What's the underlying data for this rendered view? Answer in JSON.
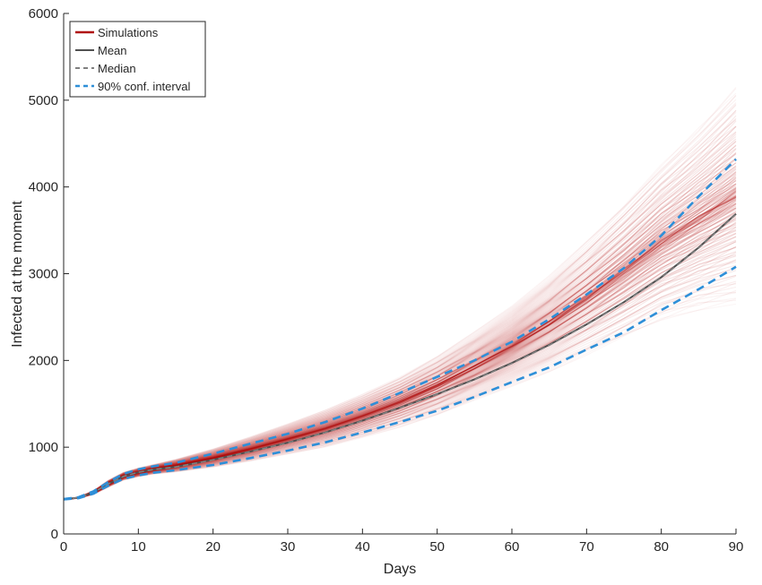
{
  "chart_data": {
    "type": "line",
    "title": "",
    "xlabel": "Days",
    "ylabel": "Infected at the moment",
    "xlim": [
      0,
      90
    ],
    "ylim": [
      0,
      6000
    ],
    "xticks": [
      0,
      10,
      20,
      30,
      40,
      50,
      60,
      70,
      80,
      90
    ],
    "yticks": [
      0,
      1000,
      2000,
      3000,
      4000,
      5000,
      6000
    ],
    "grid": false,
    "legend_position": "top-left",
    "x": [
      0,
      2,
      4,
      6,
      8,
      10,
      12,
      15,
      20,
      25,
      30,
      35,
      40,
      45,
      50,
      55,
      60,
      65,
      70,
      75,
      80,
      85,
      90
    ],
    "simulation_range": {
      "lower": [
        395,
        410,
        455,
        540,
        620,
        660,
        690,
        715,
        770,
        840,
        920,
        1000,
        1110,
        1230,
        1370,
        1530,
        1700,
        1870,
        2060,
        2260,
        2460,
        2580,
        2650
      ],
      "upper": [
        400,
        425,
        500,
        620,
        710,
        760,
        800,
        860,
        980,
        1120,
        1270,
        1430,
        1610,
        1810,
        2050,
        2330,
        2640,
        2980,
        3370,
        3800,
        4260,
        4680,
        5150
      ]
    },
    "series": [
      {
        "name": "Simulations",
        "color": "#b01010",
        "style": "solid",
        "density_band": true
      },
      {
        "name": "Mean",
        "color": "#505050",
        "style": "solid",
        "values": [
          400,
          418,
          478,
          578,
          663,
          710,
          742,
          773,
          855,
          950,
          1052,
          1170,
          1306,
          1455,
          1612,
          1782,
          1970,
          2180,
          2415,
          2673,
          2960,
          3300,
          3690
        ]
      },
      {
        "name": "Median",
        "color": "#808080",
        "style": "dashed",
        "values": [
          400,
          418,
          478,
          578,
          663,
          710,
          742,
          772,
          853,
          948,
          1050,
          1168,
          1303,
          1452,
          1608,
          1778,
          1965,
          2175,
          2410,
          2668,
          2955,
          3295,
          3685
        ]
      },
      {
        "name": "90% conf. interval",
        "color": "#2e8fd8",
        "style": "dashed",
        "band": {
          "lower": [
            398,
            412,
            465,
            557,
            635,
            675,
            705,
            735,
            795,
            875,
            960,
            1055,
            1170,
            1290,
            1420,
            1580,
            1750,
            1920,
            2125,
            2325,
            2580,
            2820,
            3080
          ],
          "upper": [
            402,
            423,
            492,
            600,
            692,
            745,
            780,
            820,
            925,
            1040,
            1155,
            1290,
            1445,
            1625,
            1810,
            2000,
            2215,
            2475,
            2760,
            3065,
            3440,
            3890,
            4320
          ]
        }
      }
    ]
  }
}
